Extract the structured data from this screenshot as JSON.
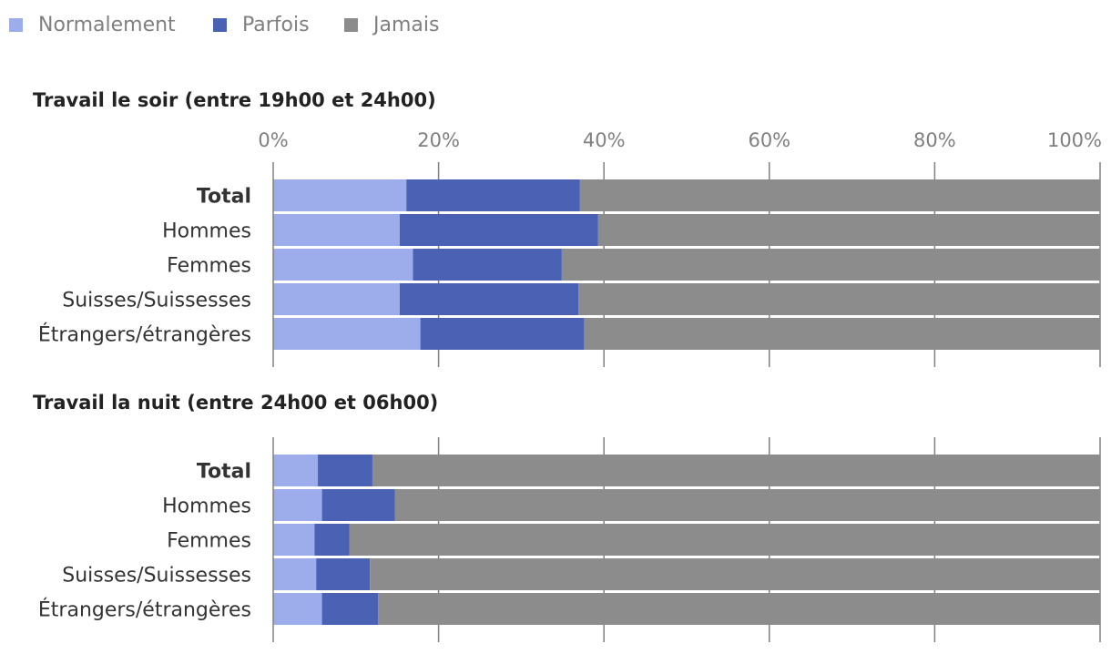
{
  "chart_data": [
    {
      "type": "bar",
      "orientation": "horizontal",
      "stacked": true,
      "title": "Travail le soir (entre 19h00 et 24h00)",
      "xlim": [
        0,
        100
      ],
      "xticks": [
        "0%",
        "20%",
        "40%",
        "60%",
        "80%",
        "100%"
      ],
      "categories": [
        "Total",
        "Hommes",
        "Femmes",
        "Suisses/Suissesses",
        "Étrangers/étrangères"
      ],
      "bold_categories": [
        "Total"
      ],
      "series": [
        {
          "name": "Normalement",
          "color": "#9dacea",
          "values": [
            16.1,
            15.3,
            16.9,
            15.3,
            17.8
          ]
        },
        {
          "name": "Parfois",
          "color": "#4b62b4",
          "values": [
            21.0,
            24.0,
            18.0,
            21.6,
            19.8
          ]
        },
        {
          "name": "Jamais",
          "color": "#8c8c8c",
          "values": [
            62.9,
            60.7,
            65.1,
            63.1,
            62.4
          ]
        }
      ]
    },
    {
      "type": "bar",
      "orientation": "horizontal",
      "stacked": true,
      "title": "Travail la nuit (entre 24h00 et 06h00)",
      "xlim": [
        0,
        100
      ],
      "categories": [
        "Total",
        "Hommes",
        "Femmes",
        "Suisses/Suissesses",
        "Étrangers/étrangères"
      ],
      "bold_categories": [
        "Total"
      ],
      "series": [
        {
          "name": "Normalement",
          "color": "#9dacea",
          "values": [
            5.4,
            5.9,
            5.0,
            5.2,
            5.9
          ]
        },
        {
          "name": "Parfois",
          "color": "#4b62b4",
          "values": [
            6.6,
            8.8,
            4.2,
            6.5,
            6.8
          ]
        },
        {
          "name": "Jamais",
          "color": "#8c8c8c",
          "values": [
            88.0,
            85.3,
            90.8,
            88.3,
            87.3
          ]
        }
      ]
    }
  ],
  "legend": [
    {
      "label": "Normalement",
      "color": "#9dacea"
    },
    {
      "label": "Parfois",
      "color": "#4b62b4"
    },
    {
      "label": "Jamais",
      "color": "#8c8c8c"
    }
  ]
}
